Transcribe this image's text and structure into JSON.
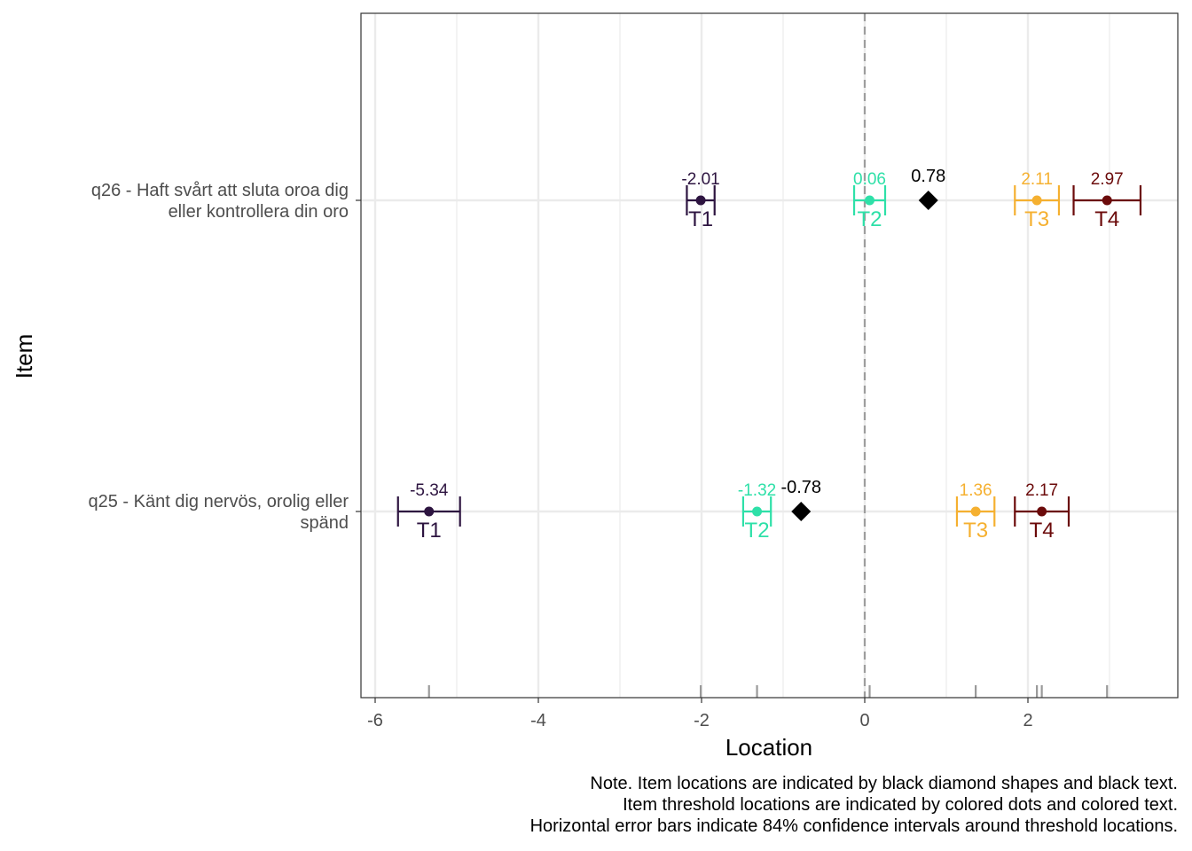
{
  "chart_data": {
    "type": "scatter",
    "xlabel": "Location",
    "ylabel": "Item",
    "xlim": [
      -6.2,
      3.8
    ],
    "x_ticks": [
      -6,
      -4,
      -2,
      0,
      2
    ],
    "x_tick_labels": [
      "-6",
      "-4",
      "-2",
      "0",
      "2"
    ],
    "grid": true,
    "items": [
      {
        "label_line1": "q26 - Haft svårt att sluta oroa dig",
        "label_line2": "eller kontrollera din oro",
        "location": 0.78,
        "location_label": "0.78",
        "thresholds": [
          {
            "name": "T1",
            "value": -2.01,
            "label": "-2.01",
            "ci": [
              -2.18,
              -1.84
            ]
          },
          {
            "name": "T2",
            "value": 0.06,
            "label": "0.06",
            "ci": [
              -0.13,
              0.25
            ]
          },
          {
            "name": "T3",
            "value": 2.11,
            "label": "2.11",
            "ci": [
              1.84,
              2.38
            ]
          },
          {
            "name": "T4",
            "value": 2.97,
            "label": "2.97",
            "ci": [
              2.56,
              3.38
            ]
          }
        ]
      },
      {
        "label_line1": "q25 - Känt dig nervös, orolig eller",
        "label_line2": "spänd",
        "location": -0.78,
        "location_label": "-0.78",
        "thresholds": [
          {
            "name": "T1",
            "value": -5.34,
            "label": "-5.34",
            "ci": [
              -5.72,
              -4.96
            ]
          },
          {
            "name": "T2",
            "value": -1.32,
            "label": "-1.32",
            "ci": [
              -1.49,
              -1.15
            ]
          },
          {
            "name": "T3",
            "value": 1.36,
            "label": "1.36",
            "ci": [
              1.13,
              1.59
            ]
          },
          {
            "name": "T4",
            "value": 2.17,
            "label": "2.17",
            "ci": [
              1.84,
              2.5
            ]
          }
        ]
      }
    ],
    "threshold_colors": {
      "T1": "#2d1440",
      "T2": "#2ee0a8",
      "T3": "#f5b030",
      "T4": "#6b0a0a"
    },
    "location_color": "#000000"
  },
  "note": {
    "line1": "Note. Item locations are indicated by black diamond shapes and black text.",
    "line2": "Item threshold locations are indicated by colored dots and colored text.",
    "line3": "Horizontal error bars indicate 84% confidence intervals around threshold locations."
  }
}
